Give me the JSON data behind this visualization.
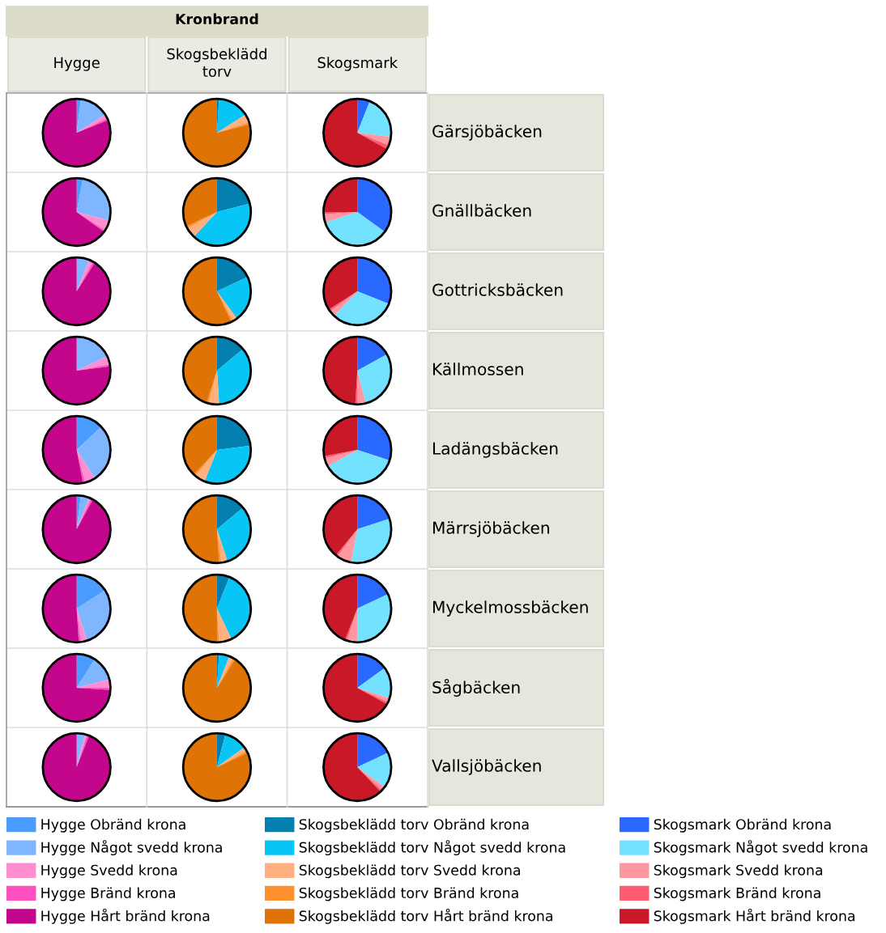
{
  "chart_data": [
    {
      "type": "other",
      "title": "Kronbrand",
      "annotations": [
        "Hygge",
        "Skogsbeklädd torv",
        "Skogsmark"
      ]
    },
    {
      "type": "other",
      "annotations": [
        "Gärsjöbäcken",
        "Gnällbäcken",
        "Gottricksbäcken",
        "Källmossen",
        "Ladängsbäcken",
        "Märrsjöbäcken",
        "Myckelmossbäcken",
        "Sågbäcken",
        "Vallsjöbäcken"
      ]
    },
    {
      "type": "pie",
      "categories": [
        "Hygge Obränd krona",
        "Hygge Något svedd krona",
        "Hygge Svedd krona",
        "Hygge Bränd krona",
        "Hygge Hårt bränd krona"
      ],
      "values": [
        2,
        14,
        2,
        1,
        81
      ],
      "colors": [
        "#4a9cff",
        "#7fb6ff",
        "#ff8ed1",
        "#ff4fbf",
        "#c4068c"
      ],
      "legend": "bottom"
    },
    {
      "type": "pie",
      "categories": [
        "Skogsbeklädd torv Obränd krona",
        "Skogsbeklädd torv Något svedd krona",
        "Skogsbeklädd torv Svedd krona",
        "Skogsbeklädd torv Bränd krona",
        "Skogsbeklädd torv Hårt bränd krona"
      ],
      "values": [
        1,
        15,
        4,
        1,
        79
      ],
      "colors": [
        "#0480b0",
        "#07c6f5",
        "#ffb07e",
        "#ff9030",
        "#e07305"
      ],
      "legend": "bottom"
    },
    {
      "type": "pie",
      "categories": [
        "Skogsmark Obränd krona",
        "Skogsmark Något svedd krona",
        "Skogsmark Svedd krona",
        "Skogsmark Bränd krona",
        "Skogsmark Hårt bränd krona"
      ],
      "values": [
        6,
        21,
        4,
        2,
        67
      ],
      "colors": [
        "#2a69ff",
        "#72e2ff",
        "#ff97a3",
        "#ff5a6e",
        "#c91828"
      ],
      "legend": "bottom"
    },
    {
      "type": "pie",
      "values": [
        3,
        26,
        5,
        1,
        65
      ],
      "colors": [
        "#4a9cff",
        "#7fb6ff",
        "#ff8ed1",
        "#ff4fbf",
        "#c4068c"
      ]
    },
    {
      "type": "pie",
      "values": [
        21,
        41,
        5,
        1,
        32
      ],
      "colors": [
        "#0480b0",
        "#07c6f5",
        "#ffb07e",
        "#ff9030",
        "#e07305"
      ]
    },
    {
      "type": "pie",
      "values": [
        35,
        35,
        4,
        1,
        25
      ],
      "colors": [
        "#2a69ff",
        "#72e2ff",
        "#ff97a3",
        "#ff5a6e",
        "#c91828"
      ]
    },
    {
      "type": "pie",
      "values": [
        0,
        6,
        2,
        1,
        91
      ],
      "colors": [
        "#4a9cff",
        "#7fb6ff",
        "#ff8ed1",
        "#ff4fbf",
        "#c4068c"
      ]
    },
    {
      "type": "pie",
      "values": [
        18,
        22,
        2,
        1,
        57
      ],
      "colors": [
        "#0480b0",
        "#07c6f5",
        "#ffb07e",
        "#ff9030",
        "#e07305"
      ]
    },
    {
      "type": "pie",
      "values": [
        31,
        31,
        3,
        1,
        34
      ],
      "colors": [
        "#2a69ff",
        "#72e2ff",
        "#ff97a3",
        "#ff5a6e",
        "#c91828"
      ]
    },
    {
      "type": "pie",
      "values": [
        0,
        18,
        4,
        1,
        77
      ],
      "colors": [
        "#4a9cff",
        "#7fb6ff",
        "#ff8ed1",
        "#ff4fbf",
        "#c4068c"
      ]
    },
    {
      "type": "pie",
      "values": [
        14,
        35,
        5,
        1,
        45
      ],
      "colors": [
        "#0480b0",
        "#07c6f5",
        "#ffb07e",
        "#ff9030",
        "#e07305"
      ]
    },
    {
      "type": "pie",
      "values": [
        17,
        29,
        4,
        1,
        49
      ],
      "colors": [
        "#2a69ff",
        "#72e2ff",
        "#ff97a3",
        "#ff5a6e",
        "#c91828"
      ]
    },
    {
      "type": "pie",
      "values": [
        13,
        28,
        5,
        1,
        53
      ],
      "colors": [
        "#4a9cff",
        "#7fb6ff",
        "#ff8ed1",
        "#ff4fbf",
        "#c4068c"
      ]
    },
    {
      "type": "pie",
      "values": [
        23,
        33,
        5,
        1,
        38
      ],
      "colors": [
        "#0480b0",
        "#07c6f5",
        "#ffb07e",
        "#ff9030",
        "#e07305"
      ]
    },
    {
      "type": "pie",
      "values": [
        30,
        37,
        4,
        1,
        28
      ],
      "colors": [
        "#2a69ff",
        "#72e2ff",
        "#ff97a3",
        "#ff5a6e",
        "#c91828"
      ]
    },
    {
      "type": "pie",
      "values": [
        2,
        4,
        1,
        1,
        92
      ],
      "colors": [
        "#4a9cff",
        "#7fb6ff",
        "#ff8ed1",
        "#ff4fbf",
        "#c4068c"
      ]
    },
    {
      "type": "pie",
      "values": [
        14,
        31,
        3,
        1,
        51
      ],
      "colors": [
        "#0480b0",
        "#07c6f5",
        "#ffb07e",
        "#ff9030",
        "#e07305"
      ]
    },
    {
      "type": "pie",
      "values": [
        20,
        33,
        7,
        1,
        39
      ],
      "colors": [
        "#2a69ff",
        "#72e2ff",
        "#ff97a3",
        "#ff5a6e",
        "#c91828"
      ]
    },
    {
      "type": "pie",
      "values": [
        16,
        29,
        3,
        1,
        51
      ],
      "colors": [
        "#4a9cff",
        "#7fb6ff",
        "#ff8ed1",
        "#ff4fbf",
        "#c4068c"
      ]
    },
    {
      "type": "pie",
      "values": [
        6,
        37,
        6,
        1,
        50
      ],
      "colors": [
        "#0480b0",
        "#07c6f5",
        "#ffb07e",
        "#ff9030",
        "#e07305"
      ]
    },
    {
      "type": "pie",
      "values": [
        18,
        32,
        5,
        1,
        44
      ],
      "colors": [
        "#2a69ff",
        "#72e2ff",
        "#ff97a3",
        "#ff5a6e",
        "#c91828"
      ]
    },
    {
      "type": "pie",
      "values": [
        9,
        12,
        4,
        1,
        74
      ],
      "colors": [
        "#4a9cff",
        "#7fb6ff",
        "#ff8ed1",
        "#ff4fbf",
        "#c4068c"
      ]
    },
    {
      "type": "pie",
      "values": [
        1,
        5,
        2,
        1,
        91
      ],
      "colors": [
        "#0480b0",
        "#07c6f5",
        "#ffb07e",
        "#ff9030",
        "#e07305"
      ]
    },
    {
      "type": "pie",
      "values": [
        15,
        15,
        2,
        1,
        67
      ],
      "colors": [
        "#2a69ff",
        "#72e2ff",
        "#ff97a3",
        "#ff5a6e",
        "#c91828"
      ]
    },
    {
      "type": "pie",
      "values": [
        0,
        4,
        1,
        1,
        94
      ],
      "colors": [
        "#4a9cff",
        "#7fb6ff",
        "#ff8ed1",
        "#ff4fbf",
        "#c4068c"
      ]
    },
    {
      "type": "pie",
      "values": [
        4,
        11,
        2,
        1,
        82
      ],
      "colors": [
        "#0480b0",
        "#07c6f5",
        "#ffb07e",
        "#ff9030",
        "#e07305"
      ]
    },
    {
      "type": "pie",
      "values": [
        18,
        17,
        2,
        1,
        62
      ],
      "colors": [
        "#2a69ff",
        "#72e2ff",
        "#ff97a3",
        "#ff5a6e",
        "#c91828"
      ]
    }
  ]
}
